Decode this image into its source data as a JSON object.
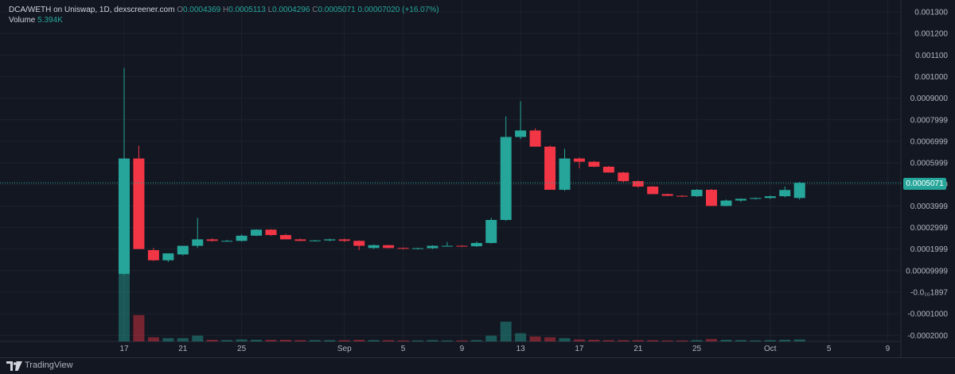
{
  "legend": {
    "symbol": "DCA/WETH on Uniswap, 1D, dexscreener.com",
    "o_label": "O",
    "o_value": "0.0004369",
    "h_label": "H",
    "h_value": "0.0005113",
    "l_label": "L",
    "l_value": "0.0004296",
    "c_label": "C",
    "c_value": "0.0005071",
    "change": "0.00007020 (+16.07%)",
    "volume_label": "Volume",
    "volume_value": "5.394K"
  },
  "footer": {
    "brand": "TradingView"
  },
  "colors": {
    "up": "#26a69a",
    "down": "#f23645",
    "background": "#131722",
    "grid": "#1e222d"
  },
  "chart_data": {
    "type": "candlestick",
    "ylim": [
      -0.0002,
      0.0013
    ],
    "y_tick_labels": [
      "0.001300",
      "0.001200",
      "0.001100",
      "0.001000",
      "0.0009000",
      "0.0007999",
      "0.0006999",
      "0.0005999",
      "0.0004999",
      "0.0003999",
      "0.0002999",
      "0.0001999",
      "0.00009999",
      "-0.0₁₀1897",
      "-0.0001000",
      "-0.0002000"
    ],
    "y_tick_values": [
      0.0013,
      0.0012,
      0.0011,
      0.001,
      0.0009,
      0.0008,
      0.0007,
      0.0006,
      0.0005,
      0.0004,
      0.0003,
      0.0002,
      0.0001,
      0.0,
      -0.0001,
      -0.0002
    ],
    "x_ticks": [
      {
        "day": 17,
        "label": "17"
      },
      {
        "day": 21,
        "label": "21"
      },
      {
        "day": 25,
        "label": "25"
      },
      {
        "day": 32,
        "label": "Sep"
      },
      {
        "day": 36,
        "label": "5"
      },
      {
        "day": 40,
        "label": "9"
      },
      {
        "day": 44,
        "label": "13"
      },
      {
        "day": 48,
        "label": "17"
      },
      {
        "day": 52,
        "label": "21"
      },
      {
        "day": 56,
        "label": "25"
      },
      {
        "day": 61,
        "label": "Oct"
      },
      {
        "day": 65,
        "label": "5"
      },
      {
        "day": 69,
        "label": "9"
      }
    ],
    "last_price": 0.0005071,
    "last_price_label": "0.0005071",
    "candles": [
      {
        "day": 17,
        "o": 8.5e-05,
        "h": 0.00104,
        "l": 8e-05,
        "c": 0.00062,
        "v": 5.2
      },
      {
        "day": 18,
        "o": 0.00062,
        "h": 0.00068,
        "l": 0.0002,
        "c": 0.0002,
        "v": 1.6
      },
      {
        "day": 19,
        "o": 0.000195,
        "h": 0.000205,
        "l": 0.000145,
        "c": 0.000148,
        "v": 0.25
      },
      {
        "day": 20,
        "o": 0.000148,
        "h": 0.00018,
        "l": 0.00014,
        "c": 0.00018,
        "v": 0.2
      },
      {
        "day": 21,
        "o": 0.000175,
        "h": 0.000215,
        "l": 0.00017,
        "c": 0.000215,
        "v": 0.2
      },
      {
        "day": 22,
        "o": 0.000215,
        "h": 0.000345,
        "l": 0.000205,
        "c": 0.000245,
        "v": 0.35
      },
      {
        "day": 23,
        "o": 0.000245,
        "h": 0.00025,
        "l": 0.000235,
        "c": 0.000238,
        "v": 0.1
      },
      {
        "day": 24,
        "o": 0.000238,
        "h": 0.000243,
        "l": 0.000234,
        "c": 0.000238,
        "v": 0.08
      },
      {
        "day": 25,
        "o": 0.000238,
        "h": 0.000268,
        "l": 0.000235,
        "c": 0.000262,
        "v": 0.12
      },
      {
        "day": 26,
        "o": 0.000262,
        "h": 0.000292,
        "l": 0.00026,
        "c": 0.00029,
        "v": 0.1
      },
      {
        "day": 27,
        "o": 0.00029,
        "h": 0.000292,
        "l": 0.000262,
        "c": 0.000265,
        "v": 0.1
      },
      {
        "day": 28,
        "o": 0.000265,
        "h": 0.00027,
        "l": 0.000245,
        "c": 0.000245,
        "v": 0.1
      },
      {
        "day": 29,
        "o": 0.000245,
        "h": 0.000248,
        "l": 0.000237,
        "c": 0.000238,
        "v": 0.08
      },
      {
        "day": 30,
        "o": 0.000238,
        "h": 0.000243,
        "l": 0.000235,
        "c": 0.00024,
        "v": 0.08
      },
      {
        "day": 31,
        "o": 0.00024,
        "h": 0.000248,
        "l": 0.000236,
        "c": 0.000245,
        "v": 0.08
      },
      {
        "day": 32,
        "o": 0.000245,
        "h": 0.000248,
        "l": 0.000233,
        "c": 0.000238,
        "v": 0.08
      },
      {
        "day": 33,
        "o": 0.000238,
        "h": 0.00024,
        "l": 0.000195,
        "c": 0.000215,
        "v": 0.1
      },
      {
        "day": 34,
        "o": 0.000205,
        "h": 0.000222,
        "l": 0.0002,
        "c": 0.000218,
        "v": 0.08
      },
      {
        "day": 35,
        "o": 0.000218,
        "h": 0.00022,
        "l": 0.000203,
        "c": 0.000205,
        "v": 0.08
      },
      {
        "day": 36,
        "o": 0.000205,
        "h": 0.000207,
        "l": 0.000199,
        "c": 0.000202,
        "v": 0.06
      },
      {
        "day": 37,
        "o": 0.000202,
        "h": 0.000206,
        "l": 0.000198,
        "c": 0.000204,
        "v": 0.06
      },
      {
        "day": 38,
        "o": 0.000204,
        "h": 0.000218,
        "l": 0.0002,
        "c": 0.000215,
        "v": 0.08
      },
      {
        "day": 39,
        "o": 0.000215,
        "h": 0.000233,
        "l": 0.000212,
        "c": 0.000215,
        "v": 0.06
      },
      {
        "day": 40,
        "o": 0.000215,
        "h": 0.000218,
        "l": 0.000212,
        "c": 0.000213,
        "v": 0.06
      },
      {
        "day": 41,
        "o": 0.000213,
        "h": 0.000235,
        "l": 0.00021,
        "c": 0.000228,
        "v": 0.08
      },
      {
        "day": 42,
        "o": 0.000228,
        "h": 0.000345,
        "l": 0.000225,
        "c": 0.000335,
        "v": 0.35
      },
      {
        "day": 43,
        "o": 0.000335,
        "h": 0.000815,
        "l": 0.00033,
        "c": 0.00072,
        "v": 1.2
      },
      {
        "day": 44,
        "o": 0.00072,
        "h": 0.000885,
        "l": 0.00071,
        "c": 0.00075,
        "v": 0.5
      },
      {
        "day": 45,
        "o": 0.00075,
        "h": 0.00076,
        "l": 0.000675,
        "c": 0.000675,
        "v": 0.3
      },
      {
        "day": 46,
        "o": 0.000675,
        "h": 0.00068,
        "l": 0.000475,
        "c": 0.000475,
        "v": 0.25
      },
      {
        "day": 47,
        "o": 0.000475,
        "h": 0.000665,
        "l": 0.00047,
        "c": 0.00062,
        "v": 0.2
      },
      {
        "day": 48,
        "o": 0.00062,
        "h": 0.000625,
        "l": 0.000575,
        "c": 0.000605,
        "v": 0.12
      },
      {
        "day": 49,
        "o": 0.000605,
        "h": 0.000608,
        "l": 0.00058,
        "c": 0.000582,
        "v": 0.1
      },
      {
        "day": 50,
        "o": 0.000582,
        "h": 0.000585,
        "l": 0.000555,
        "c": 0.000555,
        "v": 0.08
      },
      {
        "day": 51,
        "o": 0.000555,
        "h": 0.000558,
        "l": 0.00051,
        "c": 0.000515,
        "v": 0.08
      },
      {
        "day": 52,
        "o": 0.000515,
        "h": 0.000518,
        "l": 0.000485,
        "c": 0.00049,
        "v": 0.08
      },
      {
        "day": 53,
        "o": 0.00049,
        "h": 0.000492,
        "l": 0.000455,
        "c": 0.000455,
        "v": 0.08
      },
      {
        "day": 54,
        "o": 0.000455,
        "h": 0.000457,
        "l": 0.000445,
        "c": 0.000447,
        "v": 0.06
      },
      {
        "day": 55,
        "o": 0.000447,
        "h": 0.00045,
        "l": 0.000442,
        "c": 0.000445,
        "v": 0.06
      },
      {
        "day": 56,
        "o": 0.000445,
        "h": 0.000478,
        "l": 0.000442,
        "c": 0.000475,
        "v": 0.08
      },
      {
        "day": 57,
        "o": 0.000475,
        "h": 0.000478,
        "l": 0.0004,
        "c": 0.0004,
        "v": 0.15
      },
      {
        "day": 58,
        "o": 0.0004,
        "h": 0.00043,
        "l": 0.000398,
        "c": 0.000425,
        "v": 0.1
      },
      {
        "day": 59,
        "o": 0.000425,
        "h": 0.000435,
        "l": 0.000418,
        "c": 0.000433,
        "v": 0.08
      },
      {
        "day": 60,
        "o": 0.000433,
        "h": 0.000438,
        "l": 0.00043,
        "c": 0.000437,
        "v": 0.06
      },
      {
        "day": 61,
        "o": 0.000437,
        "h": 0.000448,
        "l": 0.000432,
        "c": 0.000445,
        "v": 0.08
      },
      {
        "day": 62,
        "o": 0.000445,
        "h": 0.00049,
        "l": 0.00044,
        "c": 0.000474,
        "v": 0.1
      },
      {
        "day": 63,
        "o": 0.0004369,
        "h": 0.0005113,
        "l": 0.0004296,
        "c": 0.0005071,
        "v": 0.12
      }
    ]
  }
}
